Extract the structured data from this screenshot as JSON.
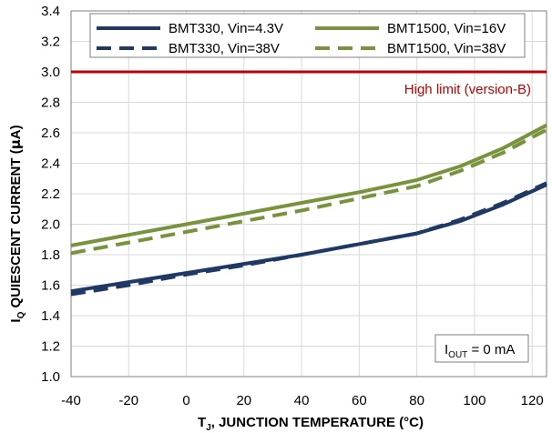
{
  "chart_data": {
    "type": "line",
    "xlabel": "T",
    "xlabel_sub": "J",
    "xlabel_rest": ", JUNCTION TEMPERATURE (°C)",
    "ylabel": "I",
    "ylabel_sub": "Q",
    "ylabel_rest": " QUIESCENT CURRENT (",
    "ylabel_mu": "µ",
    "ylabel_end": "A)",
    "xlim": [
      -40,
      125
    ],
    "ylim": [
      1.0,
      3.4
    ],
    "xticks": [
      "-40",
      "-20",
      "0",
      "20",
      "40",
      "60",
      "80",
      "100",
      "120"
    ],
    "xtick_values": [
      -40,
      -20,
      0,
      20,
      40,
      60,
      80,
      100,
      120
    ],
    "yticks": [
      "1.0",
      "1.2",
      "1.4",
      "1.6",
      "1.8",
      "2.0",
      "2.2",
      "2.4",
      "2.6",
      "2.8",
      "3.0",
      "3.2",
      "3.4"
    ],
    "ytick_values": [
      1.0,
      1.2,
      1.4,
      1.6,
      1.8,
      2.0,
      2.2,
      2.4,
      2.6,
      2.8,
      3.0,
      3.2,
      3.4
    ],
    "grid": true,
    "legend_position": "top",
    "series": [
      {
        "name": "BMT330, Vin=4.3V",
        "color": "#1f3864",
        "dash": "solid",
        "x": [
          -40,
          -20,
          0,
          20,
          40,
          60,
          80,
          95,
          110,
          125
        ],
        "y": [
          1.56,
          1.62,
          1.68,
          1.74,
          1.8,
          1.87,
          1.94,
          2.02,
          2.13,
          2.26
        ]
      },
      {
        "name": "BMT330, Vin=38V",
        "color": "#1f3864",
        "dash": "dashed",
        "x": [
          -40,
          -20,
          0,
          20,
          40,
          60,
          80,
          95,
          110,
          125
        ],
        "y": [
          1.54,
          1.6,
          1.67,
          1.73,
          1.8,
          1.87,
          1.94,
          2.03,
          2.14,
          2.27
        ]
      },
      {
        "name": "BMT1500, Vin=16V",
        "color": "#77933c",
        "dash": "solid",
        "x": [
          -40,
          -20,
          0,
          20,
          40,
          60,
          80,
          95,
          110,
          125
        ],
        "y": [
          1.86,
          1.93,
          2.0,
          2.07,
          2.14,
          2.21,
          2.29,
          2.38,
          2.5,
          2.65
        ]
      },
      {
        "name": "BMT1500, Vin=38V",
        "color": "#77933c",
        "dash": "dashed",
        "x": [
          -40,
          -20,
          0,
          20,
          40,
          60,
          80,
          95,
          110,
          125
        ],
        "y": [
          1.81,
          1.88,
          1.95,
          2.02,
          2.09,
          2.17,
          2.25,
          2.35,
          2.47,
          2.62
        ]
      }
    ],
    "high_limit": {
      "value": 3.0,
      "label": "High limit (version-B)",
      "color": "#c00000"
    },
    "condition_box": {
      "prefix": "I",
      "sub": "OUT",
      "suffix": " = 0 mA"
    }
  }
}
